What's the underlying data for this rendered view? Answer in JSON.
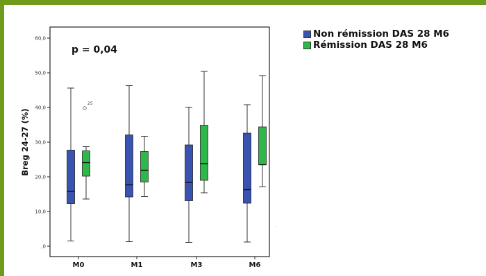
{
  "chart_data": {
    "type": "boxplot",
    "annotation": "p = 0,04",
    "ylabel": "Breg 24-27 (%)",
    "ylim": [
      0,
      60
    ],
    "yticks": [
      {
        "value": 0,
        "label": ",0"
      },
      {
        "value": 10,
        "label": "10,0"
      },
      {
        "value": 20,
        "label": "20,0"
      },
      {
        "value": 30,
        "label": "30,0"
      },
      {
        "value": 40,
        "label": "40,0"
      },
      {
        "value": 50,
        "label": "50,0"
      },
      {
        "value": 60,
        "label": "60,0"
      }
    ],
    "categories": [
      "M0",
      "M1",
      "M3",
      "M6"
    ],
    "legend_position": "top-right",
    "series": [
      {
        "name": "Non rémission DAS 28 M6",
        "color": "#3853b0",
        "boxes": [
          {
            "min": 1.5,
            "q1": 12.3,
            "median": 15.8,
            "q3": 27.7,
            "max": 45.6
          },
          {
            "min": 1.3,
            "q1": 14.2,
            "median": 17.7,
            "q3": 32.1,
            "max": 46.3
          },
          {
            "min": 1.1,
            "q1": 13.1,
            "median": 18.4,
            "q3": 29.2,
            "max": 40.1
          },
          {
            "min": 1.2,
            "q1": 12.4,
            "median": 16.3,
            "q3": 32.6,
            "max": 40.8
          }
        ]
      },
      {
        "name": "Rémission DAS 28 M6",
        "color": "#2fb84a",
        "boxes": [
          {
            "min": 13.6,
            "q1": 20.2,
            "median": 24.1,
            "q3": 27.5,
            "max": 28.7
          },
          {
            "min": 14.3,
            "q1": 18.5,
            "median": 21.9,
            "q3": 27.3,
            "max": 31.7
          },
          {
            "min": 15.4,
            "q1": 19.0,
            "median": 23.8,
            "q3": 34.9,
            "max": 50.4
          },
          {
            "min": 17.1,
            "q1": 23.5,
            "median": 23.5,
            "q3": 34.4,
            "max": 49.2
          }
        ]
      }
    ],
    "outliers": [
      {
        "series": 1,
        "category": "M0",
        "value": 39.8,
        "label": "25"
      }
    ]
  }
}
